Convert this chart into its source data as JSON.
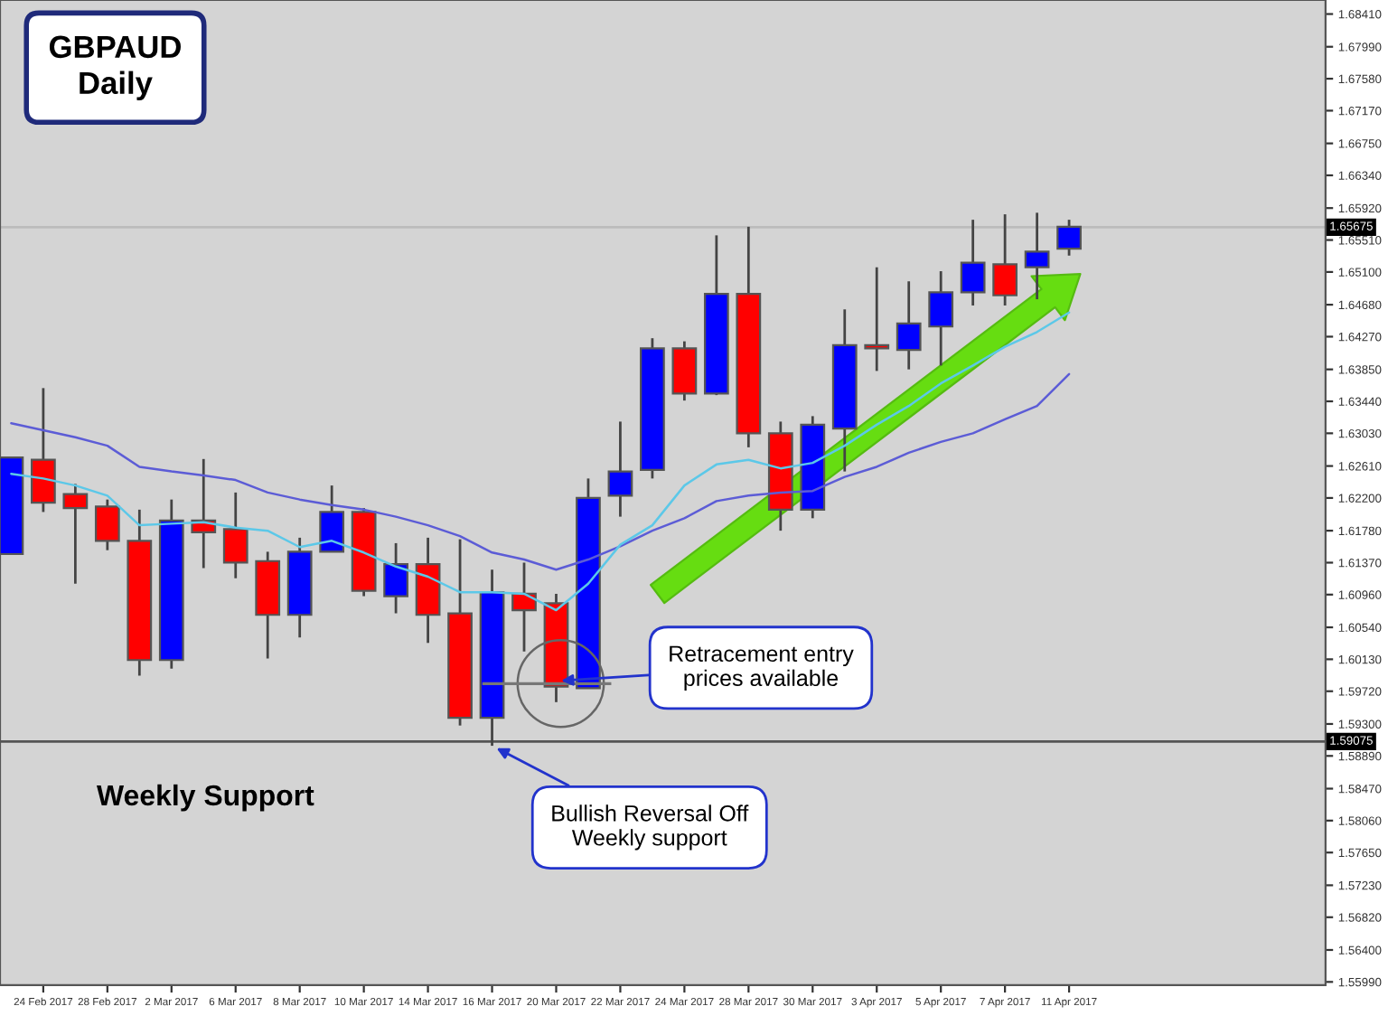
{
  "chart_data": {
    "type": "candlestick",
    "title": "GBPAUD",
    "subtitle": "Daily",
    "categories": [
      null,
      "24 Feb 2017",
      null,
      "28 Feb 2017",
      null,
      "2 Mar 2017",
      null,
      "6 Mar 2017",
      null,
      "8 Mar 2017",
      null,
      "10 Mar 2017",
      null,
      "14 Mar 2017",
      null,
      "16 Mar 2017",
      null,
      "20 Mar 2017",
      null,
      "22 Mar 2017",
      null,
      "24 Mar 2017",
      null,
      "28 Mar 2017",
      null,
      "30 Mar 2017",
      null,
      "3 Apr 2017",
      null,
      "5 Apr 2017",
      null,
      "7 Apr 2017",
      null,
      "11 Apr 2017"
    ],
    "ohlc": [
      [
        1.6148,
        1.6272,
        1.6148,
        1.6272
      ],
      [
        1.6269,
        1.6361,
        1.6202,
        1.6214
      ],
      [
        1.6225,
        1.6238,
        1.611,
        1.6207
      ],
      [
        1.6209,
        1.6218,
        1.6153,
        1.6165
      ],
      [
        1.6165,
        1.6205,
        1.5992,
        1.6012
      ],
      [
        1.6012,
        1.6218,
        1.6001,
        1.6191
      ],
      [
        1.6191,
        1.627,
        1.613,
        1.6176
      ],
      [
        1.618,
        1.6227,
        1.6117,
        1.6137
      ],
      [
        1.6139,
        1.6151,
        1.6014,
        1.607
      ],
      [
        1.607,
        1.6169,
        1.6041,
        1.6151
      ],
      [
        1.6151,
        1.6236,
        1.6151,
        1.6202
      ],
      [
        1.6202,
        1.6207,
        1.6094,
        1.6101
      ],
      [
        1.6094,
        1.6162,
        1.6072,
        1.6135
      ],
      [
        1.6135,
        1.6169,
        1.6034,
        1.607
      ],
      [
        1.6072,
        1.6167,
        1.5928,
        1.5938
      ],
      [
        1.5938,
        1.6128,
        1.5902,
        1.6099
      ],
      [
        1.6097,
        1.6137,
        1.6023,
        1.6076
      ],
      [
        1.6085,
        1.6097,
        1.5958,
        1.5978
      ],
      [
        1.5976,
        1.6245,
        1.5976,
        1.622
      ],
      [
        1.6223,
        1.6318,
        1.6196,
        1.6254
      ],
      [
        1.6256,
        1.6425,
        1.6245,
        1.6412
      ],
      [
        1.6412,
        1.6421,
        1.6345,
        1.6354
      ],
      [
        1.6354,
        1.6557,
        1.6352,
        1.6482
      ],
      [
        1.6482,
        1.6568,
        1.6285,
        1.6303
      ],
      [
        1.6303,
        1.6318,
        1.6178,
        1.6205
      ],
      [
        1.6205,
        1.6325,
        1.6194,
        1.6314
      ],
      [
        1.6309,
        1.6462,
        1.6254,
        1.6416
      ],
      [
        1.6416,
        1.6516,
        1.6383,
        1.6412
      ],
      [
        1.641,
        1.6498,
        1.6385,
        1.6444
      ],
      [
        1.644,
        1.6511,
        1.639,
        1.6484
      ],
      [
        1.6484,
        1.6577,
        1.6467,
        1.6522
      ],
      [
        1.652,
        1.6584,
        1.6467,
        1.648
      ],
      [
        1.6516,
        1.6586,
        1.6475,
        1.6536
      ],
      [
        1.654,
        1.6577,
        1.6531,
        1.6568
      ]
    ],
    "colors": [
      "#0000ff",
      "#ff0000",
      "#ff0000",
      "#ff0000",
      "#ff0000",
      "#0000ff",
      "#ff0000",
      "#ff0000",
      "#ff0000",
      "#0000ff",
      "#0000ff",
      "#ff0000",
      "#0000ff",
      "#ff0000",
      "#ff0000",
      "#0000ff",
      "#ff0000",
      "#ff0000",
      "#0000ff",
      "#0000ff",
      "#0000ff",
      "#ff0000",
      "#0000ff",
      "#ff0000",
      "#ff0000",
      "#0000ff",
      "#0000ff",
      "#ff0000",
      "#0000ff",
      "#0000ff",
      "#0000ff",
      "#ff0000",
      "#0000ff",
      "#0000ff"
    ],
    "series": [
      {
        "type": "line",
        "color": "#5c5cd6",
        "values": [
          1.6316,
          1.6307,
          1.6298,
          1.6287,
          1.626,
          1.6254,
          1.6249,
          1.6243,
          1.6227,
          1.6218,
          1.6211,
          1.6205,
          1.6196,
          1.6185,
          1.6171,
          1.615,
          1.6141,
          1.6128,
          1.6141,
          1.6158,
          1.6178,
          1.6194,
          1.6216,
          1.6223,
          1.6227,
          1.6229,
          1.6247,
          1.626,
          1.6278,
          1.6292,
          1.6303,
          1.6321,
          1.6338,
          1.6379
        ]
      },
      {
        "type": "line",
        "color": "#5cc8e8",
        "values": [
          1.6251,
          1.6245,
          1.6236,
          1.6223,
          1.6185,
          1.6187,
          1.6189,
          1.6182,
          1.6178,
          1.6157,
          1.6165,
          1.615,
          1.6132,
          1.6119,
          1.6099,
          1.6099,
          1.6097,
          1.6076,
          1.611,
          1.616,
          1.6185,
          1.6236,
          1.6263,
          1.6269,
          1.6258,
          1.6265,
          1.6287,
          1.6314,
          1.6338,
          1.6367,
          1.639,
          1.6414,
          1.6433,
          1.6458
        ]
      }
    ],
    "ylim": [
      1.5595,
      1.6859
    ],
    "yticks": [
      {
        "value": 1.6841,
        "label": "1.68410"
      },
      {
        "value": 1.6799,
        "label": "1.67990"
      },
      {
        "value": 1.6758,
        "label": "1.67580"
      },
      {
        "value": 1.6717,
        "label": "1.67170"
      },
      {
        "value": 1.6675,
        "label": "1.66750"
      },
      {
        "value": 1.6634,
        "label": "1.66340"
      },
      {
        "value": 1.6592,
        "label": "1.65920"
      },
      {
        "value": 1.6551,
        "label": "1.65510"
      },
      {
        "value": 1.651,
        "label": "1.65100"
      },
      {
        "value": 1.6468,
        "label": "1.64680"
      },
      {
        "value": 1.6427,
        "label": "1.64270"
      },
      {
        "value": 1.6385,
        "label": "1.63850"
      },
      {
        "value": 1.6344,
        "label": "1.63440"
      },
      {
        "value": 1.6303,
        "label": "1.63030"
      },
      {
        "value": 1.6261,
        "label": "1.62610"
      },
      {
        "value": 1.622,
        "label": "1.62200"
      },
      {
        "value": 1.6178,
        "label": "1.61780"
      },
      {
        "value": 1.6137,
        "label": "1.61370"
      },
      {
        "value": 1.6096,
        "label": "1.60960"
      },
      {
        "value": 1.6054,
        "label": "1.60540"
      },
      {
        "value": 1.6013,
        "label": "1.60130"
      },
      {
        "value": 1.5972,
        "label": "1.59720"
      },
      {
        "value": 1.593,
        "label": "1.59300"
      },
      {
        "value": 1.5889,
        "label": "1.58890"
      },
      {
        "value": 1.5847,
        "label": "1.58470"
      },
      {
        "value": 1.5806,
        "label": "1.58060"
      },
      {
        "value": 1.5765,
        "label": "1.57650"
      },
      {
        "value": 1.5723,
        "label": "1.57230"
      },
      {
        "value": 1.5682,
        "label": "1.56820"
      },
      {
        "value": 1.564,
        "label": "1.56400"
      },
      {
        "value": 1.5599,
        "label": "1.55990"
      }
    ],
    "ref_lines": [
      {
        "axis": "y",
        "value": 1.65675,
        "label": "1.65675",
        "color": "#bcbcbc"
      },
      {
        "axis": "y",
        "value": 1.59075,
        "label": "1.59075",
        "color": "#555555"
      }
    ],
    "annotations": [
      "Weekly Support",
      {
        "text": "Retracement entry\nprices available",
        "x": "20 Mar 2017",
        "y": 1.5985
      },
      {
        "text": "Bullish Reversal Off\nWeekly support",
        "x": "16 Mar 2017",
        "y": 1.5902
      }
    ],
    "grid": false
  }
}
